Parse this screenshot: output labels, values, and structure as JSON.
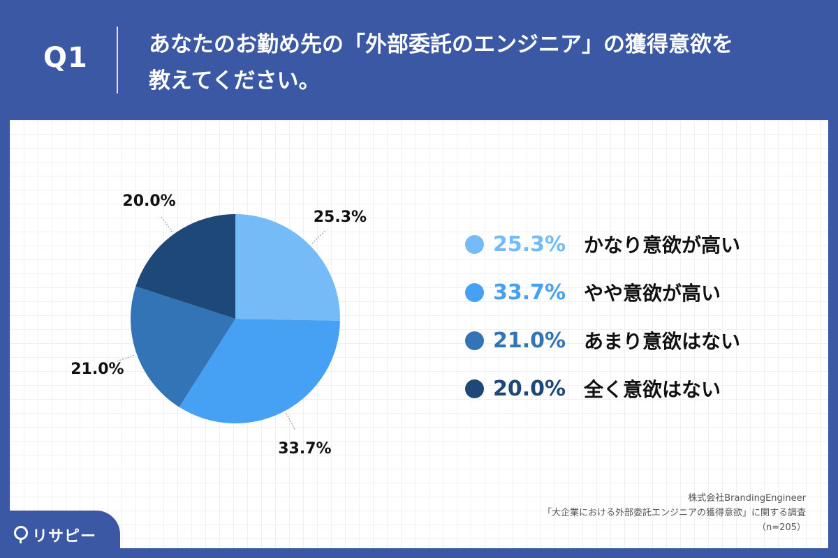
{
  "header": {
    "question_label": "Q1",
    "title_line1": "あなたのお勤め先の「外部委託のエンジニア」の獲得意欲を",
    "title_line2": "教えてください。"
  },
  "chart_data": {
    "type": "pie",
    "title": "",
    "slices": [
      {
        "label": "かなり意欲が高い",
        "value": 25.3,
        "display": "25.3%",
        "color": "#74bbf7"
      },
      {
        "label": "やや意欲が高い",
        "value": 33.7,
        "display": "33.7%",
        "color": "#46a0f3"
      },
      {
        "label": "あまり意欲はない",
        "value": 21.0,
        "display": "21.0%",
        "color": "#3274b5"
      },
      {
        "label": "全く意欲はない",
        "value": 20.0,
        "display": "20.0%",
        "color": "#1e4877"
      }
    ],
    "start_angle": "12 o'clock",
    "direction": "clockwise",
    "legend_position": "right"
  },
  "footer": {
    "line1": "株式会社BrandingEngineer",
    "line2": "「大企業における外部委託エンジニアの獲得意欲」に関する調査",
    "line3": "（n=205）"
  },
  "logo": {
    "text": "リサピー"
  },
  "colors": {
    "header_bg": "#3b58a4",
    "panel_bg": "#ffffff"
  }
}
